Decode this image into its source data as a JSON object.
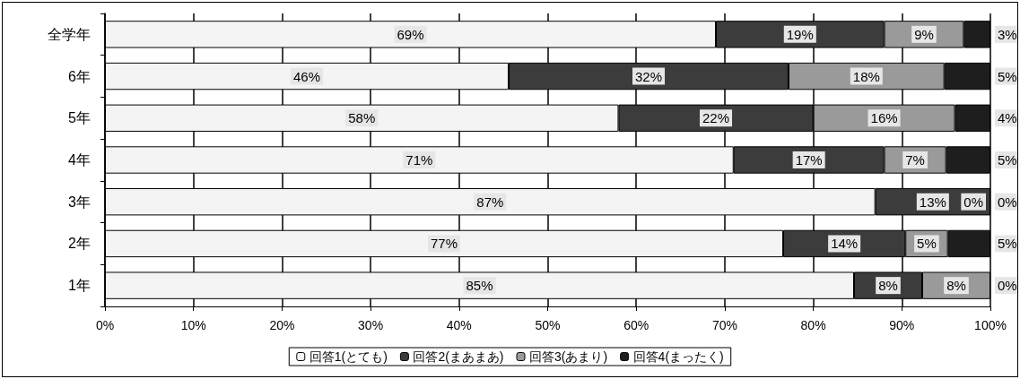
{
  "chart_data": {
    "type": "bar",
    "orientation": "horizontal",
    "stacked": true,
    "categories": [
      "全学年",
      "6年",
      "5年",
      "4年",
      "3年",
      "2年",
      "1年"
    ],
    "series": [
      {
        "name": "回答1(とても)",
        "color": "#f4f4f4",
        "values": [
          69,
          45.6,
          58,
          71,
          87,
          76.6,
          84.6
        ],
        "value_labels": [
          "69%",
          "46%",
          "58%",
          "71%",
          "87%",
          "77%",
          "85%"
        ]
      },
      {
        "name": "回答2(まあまあ)",
        "color": "#3c3c3c",
        "values": [
          19,
          31.6,
          22,
          17,
          13,
          13.8,
          7.7
        ],
        "value_labels": [
          "19%",
          "32%",
          "22%",
          "17%",
          "13%",
          "14%",
          "8%"
        ]
      },
      {
        "name": "回答3(あまり)",
        "color": "#9a9a9a",
        "values": [
          9,
          17.6,
          16,
          7,
          0,
          4.8,
          7.7
        ],
        "value_labels": [
          "9%",
          "18%",
          "16%",
          "7%",
          "0%",
          "5%",
          "8%"
        ]
      },
      {
        "name": "回答4(まったく)",
        "color": "#1e1e1e",
        "values": [
          3,
          5.2,
          4,
          5,
          0,
          4.8,
          0
        ],
        "value_labels": [
          "3%",
          "5%",
          "4%",
          "5%",
          "0%",
          "5%",
          "0%"
        ]
      }
    ],
    "xlim": [
      0,
      100
    ],
    "xticks": [
      {
        "value": 0,
        "label": "0%"
      },
      {
        "value": 10,
        "label": "10%"
      },
      {
        "value": 20,
        "label": "20%"
      },
      {
        "value": 30,
        "label": "30%"
      },
      {
        "value": 40,
        "label": "40%"
      },
      {
        "value": 50,
        "label": "50%"
      },
      {
        "value": 60,
        "label": "60%"
      },
      {
        "value": 70,
        "label": "70%"
      },
      {
        "value": 80,
        "label": "80%"
      },
      {
        "value": 90,
        "label": "90%"
      },
      {
        "value": 100,
        "label": "100%"
      }
    ],
    "grid": "x",
    "legend": "bottom"
  }
}
